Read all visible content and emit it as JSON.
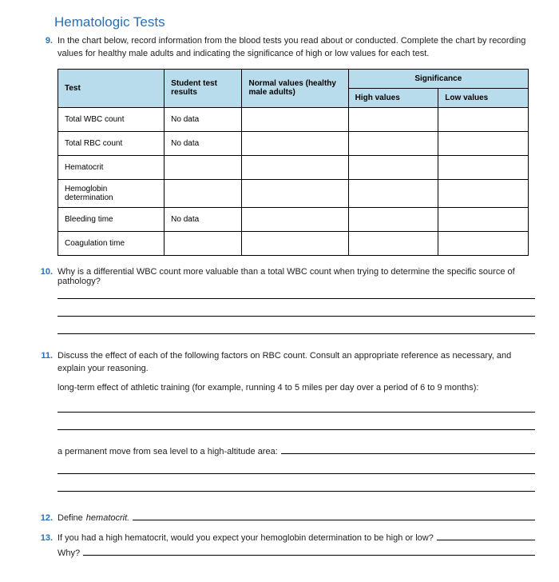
{
  "title": "Hematologic Tests",
  "q9": {
    "num": "9.",
    "text": "In the chart below, record information from the blood tests you read about or conducted. Complete the chart by recording values for healthy male adults and indicating the significance of high or low values for each test."
  },
  "table": {
    "headers": {
      "test": "Test",
      "student": "Student test results",
      "normal": "Normal values (healthy male adults)",
      "sig": "Significance",
      "high": "High values",
      "low": "Low values"
    },
    "rows": [
      {
        "test": "Total WBC count",
        "student": "No data",
        "normal": "",
        "high": "",
        "low": ""
      },
      {
        "test": "Total RBC count",
        "student": "No data",
        "normal": "",
        "high": "",
        "low": ""
      },
      {
        "test": "Hematocrit",
        "student": "",
        "normal": "",
        "high": "",
        "low": ""
      },
      {
        "test": "Hemoglobin determination",
        "student": "",
        "normal": "",
        "high": "",
        "low": ""
      },
      {
        "test": "Bleeding time",
        "student": "No data",
        "normal": "",
        "high": "",
        "low": ""
      },
      {
        "test": "Coagulation time",
        "student": "",
        "normal": "",
        "high": "",
        "low": ""
      }
    ]
  },
  "q10": {
    "num": "10.",
    "lead": "Why is a differential WBC count more valuable than a total WBC count when trying to determine the specific source of pathology?"
  },
  "q11": {
    "num": "11.",
    "text": "Discuss the effect of each of the following factors on RBC count. Consult an appropriate reference as necessary, and explain your reasoning.",
    "sub1": "long-term effect of athletic training (for example, running 4 to 5 miles per day over a period of 6 to 9 months):",
    "sub2": "a permanent move from sea level to a high-altitude area:"
  },
  "q12": {
    "num": "12.",
    "lead": "Define ",
    "italic": "hematocrit."
  },
  "q13": {
    "num": "13.",
    "lead": "If you had a high hematocrit, would you expect your hemoglobin determination to be high or low?",
    "why": "Why?"
  }
}
